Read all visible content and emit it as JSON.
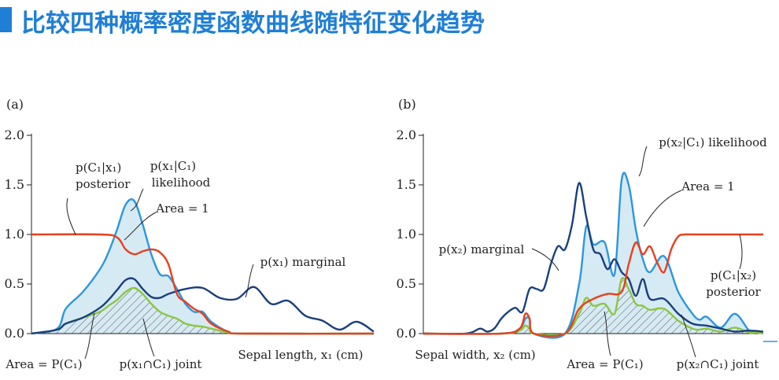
{
  "title": "比较四种概率密度函数曲线随特征变化趋势",
  "colors": {
    "marginal": "#1a3f7e",
    "likelihood": "#2b96e0",
    "posterior": "#e8401c",
    "joint": "#8cc63f",
    "fill": "#d6eaf4",
    "title": "#1f7fd6"
  },
  "chart_data": [
    {
      "panel_label": "(a)",
      "type": "line",
      "xlabel": "Sepal length, x₁ (cm)",
      "ylim": [
        0,
        2
      ],
      "yticks": [
        "0.0",
        "0.5",
        "1.0",
        "1.5",
        "2.0"
      ],
      "annotations": {
        "posterior": [
          "p(C₁|x₁)",
          "posterior"
        ],
        "likelihood": [
          "p(x₁|C₁)",
          "likelihood"
        ],
        "area": "Area = 1",
        "marginal": "p(x₁) marginal",
        "area_joint": "Area = P(C₁)",
        "joint": "p(x₁∩C₁) joint"
      },
      "series": [
        {
          "key": "likelihood",
          "x": [
            4.0,
            4.3,
            4.4,
            4.6,
            4.8,
            4.9,
            5.0,
            5.1,
            5.2,
            5.3,
            5.4,
            5.5,
            5.6,
            5.7,
            5.8,
            5.9,
            6.0,
            6.1,
            6.3,
            6.5,
            8.0
          ],
          "y": [
            0,
            0.05,
            0.25,
            0.42,
            0.65,
            0.82,
            1.05,
            1.3,
            1.34,
            1.1,
            0.8,
            0.6,
            0.58,
            0.45,
            0.3,
            0.22,
            0.22,
            0.12,
            0.02,
            0,
            0
          ]
        },
        {
          "key": "joint",
          "x": [
            4.0,
            4.3,
            4.4,
            4.6,
            4.8,
            4.9,
            5.0,
            5.1,
            5.2,
            5.3,
            5.4,
            5.5,
            5.6,
            5.7,
            5.8,
            5.9,
            6.0,
            6.1,
            6.3,
            6.5,
            8.0
          ],
          "y": [
            0,
            0.04,
            0.1,
            0.16,
            0.22,
            0.28,
            0.34,
            0.42,
            0.46,
            0.4,
            0.3,
            0.22,
            0.18,
            0.15,
            0.1,
            0.08,
            0.07,
            0.05,
            0.01,
            0,
            0
          ]
        },
        {
          "key": "marginal",
          "x": [
            4.0,
            4.3,
            4.4,
            4.6,
            4.8,
            4.9,
            5.0,
            5.1,
            5.2,
            5.3,
            5.4,
            5.5,
            5.6,
            5.8,
            6.0,
            6.2,
            6.4,
            6.6,
            6.8,
            7.0,
            7.2,
            7.4,
            7.6,
            7.8,
            8.0
          ],
          "y": [
            0,
            0.04,
            0.1,
            0.16,
            0.26,
            0.34,
            0.44,
            0.54,
            0.55,
            0.45,
            0.37,
            0.36,
            0.4,
            0.45,
            0.46,
            0.36,
            0.35,
            0.47,
            0.3,
            0.33,
            0.18,
            0.13,
            0.04,
            0.12,
            0.02
          ]
        },
        {
          "key": "posterior",
          "x": [
            4.0,
            4.8,
            5.0,
            5.1,
            5.2,
            5.3,
            5.4,
            5.5,
            5.6,
            5.7,
            5.8,
            5.9,
            6.0,
            6.1,
            6.3,
            6.5,
            8.0
          ],
          "y": [
            1,
            1,
            0.97,
            0.85,
            0.8,
            0.83,
            0.85,
            0.82,
            0.7,
            0.4,
            0.32,
            0.25,
            0.2,
            0.1,
            0.02,
            0,
            0
          ]
        }
      ]
    },
    {
      "panel_label": "(b)",
      "type": "line",
      "xlabel": "Sepal width, x₂ (cm)",
      "ylim": [
        0,
        2
      ],
      "yticks": [
        "0.0",
        "0.5",
        "1.0",
        "1.5",
        "2.0"
      ],
      "annotations": {
        "likelihood": "p(x₂|C₁) likelihood",
        "area": "Area = 1",
        "marginal": "p(x₂) marginal",
        "posterior": [
          "p(C₁|x₂)",
          "posterior"
        ],
        "area_joint": "Area = P(C₁)",
        "joint": "p(x₂∩C₁) joint"
      },
      "series": [
        {
          "key": "likelihood",
          "x": [
            2.0,
            2.55,
            2.68,
            2.72,
            2.75,
            2.78,
            3.0,
            3.1,
            3.15,
            3.2,
            3.28,
            3.35,
            3.4,
            3.45,
            3.5,
            3.55,
            3.6,
            3.7,
            3.8,
            3.9,
            3.95,
            4.0,
            4.1,
            4.2,
            4.3,
            4.35,
            4.4
          ],
          "y": [
            0,
            0,
            0.05,
            0.15,
            0.15,
            0,
            0,
            0.5,
            1.08,
            0.9,
            0.92,
            0.6,
            1.55,
            1.5,
            1.05,
            0.75,
            0.62,
            0.78,
            0.42,
            0.2,
            0.14,
            0.17,
            0.06,
            0.2,
            0.03,
            0.02,
            0
          ]
        },
        {
          "key": "joint",
          "x": [
            2.0,
            2.55,
            2.68,
            2.72,
            2.75,
            2.78,
            3.0,
            3.1,
            3.15,
            3.2,
            3.28,
            3.35,
            3.4,
            3.45,
            3.5,
            3.55,
            3.6,
            3.7,
            3.8,
            3.9,
            3.95,
            4.0,
            4.1,
            4.2,
            4.3,
            4.35,
            4.4
          ],
          "y": [
            0,
            0,
            0.03,
            0.08,
            0.05,
            0,
            0,
            0.2,
            0.36,
            0.28,
            0.3,
            0.2,
            0.55,
            0.45,
            0.3,
            0.28,
            0.24,
            0.25,
            0.13,
            0.05,
            0.04,
            0.05,
            0.02,
            0.06,
            0.01,
            0.01,
            0
          ]
        },
        {
          "key": "marginal",
          "x": [
            2.0,
            2.3,
            2.4,
            2.45,
            2.5,
            2.55,
            2.6,
            2.65,
            2.7,
            2.75,
            2.8,
            2.85,
            2.9,
            2.95,
            3.0,
            3.05,
            3.1,
            3.15,
            3.2,
            3.25,
            3.3,
            3.35,
            3.4,
            3.45,
            3.5,
            3.55,
            3.6,
            3.7,
            3.8,
            3.9,
            4.0,
            4.1,
            4.2,
            4.3,
            4.4
          ],
          "y": [
            0,
            0,
            0.05,
            0.02,
            0.05,
            0.15,
            0.22,
            0.26,
            0.22,
            0.45,
            0.45,
            0.45,
            0.7,
            0.88,
            0.85,
            1.1,
            1.52,
            1.18,
            0.85,
            0.8,
            0.65,
            0.75,
            0.62,
            0.55,
            0.38,
            0.55,
            0.35,
            0.35,
            0.2,
            0.1,
            0.08,
            0.05,
            0.02,
            0.03,
            0.02
          ]
        },
        {
          "key": "posterior",
          "x": [
            2.0,
            2.55,
            2.68,
            2.72,
            2.75,
            2.78,
            3.0,
            3.1,
            3.2,
            3.3,
            3.4,
            3.45,
            3.5,
            3.55,
            3.6,
            3.65,
            3.7,
            3.75,
            3.8,
            3.85,
            3.9,
            4.4
          ],
          "y": [
            0,
            0,
            0.05,
            0.2,
            0.15,
            0,
            0,
            0.25,
            0.35,
            0.4,
            0.42,
            0.7,
            0.92,
            0.8,
            0.88,
            0.72,
            0.62,
            0.85,
            0.98,
            1.0,
            1.0,
            1.0
          ]
        }
      ]
    }
  ]
}
